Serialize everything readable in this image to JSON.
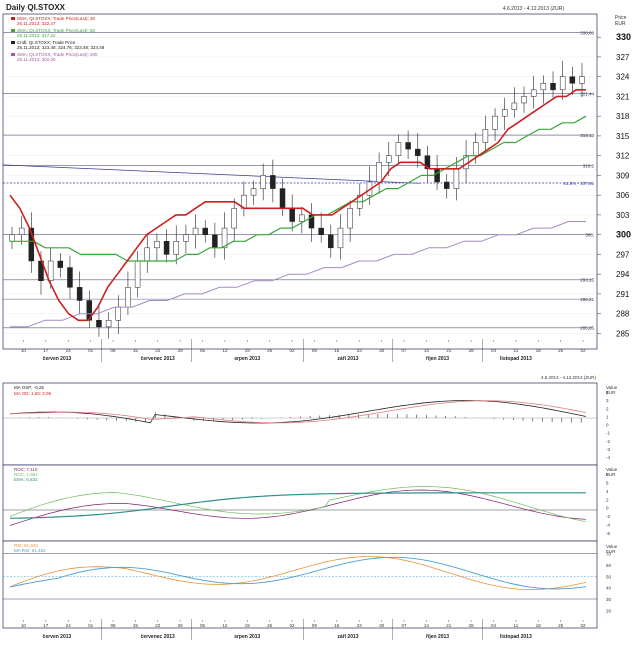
{
  "header": {
    "title": "Daily QI.STOXX",
    "range": "4.6.2013 - 4.12.2013 (ZUR)",
    "range2": "4.6.2013 - 4.12.2013 (ZUR)"
  },
  "colors": {
    "price": "#222222",
    "sma30": "#cc1f1f",
    "sma50": "#3aa63a",
    "sma200": "#a58cc0",
    "rsi": "#e8943a",
    "rsi_ma": "#4aa0d0",
    "roc": "#7a1f6e",
    "roc2": "#6dbf5a",
    "ema": "#2f8f8a",
    "grid": "#7a7a9a"
  },
  "legend": {
    "sma30": "SMA; QI.STOXX; Trade Price(Last); 30",
    "sma30_v": "25.11.2013; 322,47",
    "sma50": "SMA; QI.STOXX; Trade Price(Last); 50",
    "sma50_v": "25.11.2013; 317,22",
    "ohlc": "Cndl; QI.STOXX; Trade Price",
    "ohlc_v": "25.11.2013; 323,48; 324,76; 323,48; 324,48",
    "sma200": "SMA; QI.STOXX; Trade Price(Last); 200",
    "sma200_v": "25.11.2013; 302,00"
  },
  "price_axis": {
    "unit1": "Price",
    "unit2": "EUR",
    "ticks": [
      "330",
      "327",
      "324",
      "321",
      "318",
      "315",
      "312",
      "309",
      "306",
      "303",
      "300",
      "297",
      "294",
      "291",
      "288",
      "285"
    ]
  },
  "levels": [
    {
      "value": 330.68,
      "label": "330,68"
    },
    {
      "value": 321.44,
      "label": "321,44"
    },
    {
      "value": 315.13,
      "label": "315,13"
    },
    {
      "value": 310.5,
      "label": "310,5"
    },
    {
      "value": 307.85,
      "label": "61,8% · 307,85"
    },
    {
      "value": 300.0,
      "label": "300,"
    },
    {
      "value": 293.15,
      "label": "293,15"
    },
    {
      "value": 290.21,
      "label": "290,21"
    },
    {
      "value": 285.85,
      "label": "285,85"
    }
  ],
  "x_ticks": [
    "10",
    "17",
    "24",
    "01",
    "08",
    "15",
    "22",
    "29",
    "05",
    "12",
    "19",
    "26",
    "02",
    "09",
    "16",
    "23",
    "30",
    "07",
    "14",
    "21",
    "28",
    "04",
    "11",
    "18",
    "25",
    "02"
  ],
  "months": [
    {
      "at": 1.5,
      "label": "červen 2013"
    },
    {
      "at": 6.0,
      "label": "červenec 2013"
    },
    {
      "at": 10.0,
      "label": "srpen 2013"
    },
    {
      "at": 14.5,
      "label": "září 2013"
    },
    {
      "at": 18.5,
      "label": "říjen 2013"
    },
    {
      "at": 22.0,
      "label": "listopad 2013"
    }
  ],
  "macd_legend": {
    "l1": "MA OSP; -0,25",
    "l2": "MA OD; 1,60; 2,09"
  },
  "macd_axis": {
    "unit1": "Value",
    "unit2": "EUR",
    "ticks": [
      "4",
      "3",
      "2",
      "1",
      "0",
      "-1",
      "-2",
      "-3",
      "-4"
    ]
  },
  "roc_legend": {
    "l1": "ROC; 7,110",
    "l2": "ROC; 1,862",
    "l3": "EMA; 6,633"
  },
  "roc_axis": {
    "unit1": "Value",
    "unit2": "EUR",
    "ticks": [
      "8",
      "6",
      "4",
      "2",
      "0",
      "-2",
      "-4",
      "-6"
    ]
  },
  "rsi_legend": {
    "l1": "RSI; 61,929",
    "l2": "MA RSI; 61,452"
  },
  "rsi_axis": {
    "unit1": "Value",
    "unit2": "EUR",
    "ticks": [
      "70",
      "60",
      "50",
      "40",
      "30",
      "20"
    ]
  },
  "chart_data": {
    "type": "line",
    "title": "Daily QI.STOXX",
    "x_ticks_note": "weekly date ticks from June to early December 2013",
    "ylim": [
      284,
      332
    ],
    "series": [
      {
        "name": "Cndl; QI.STOXX; Trade Price",
        "values": [
          300,
          301,
          296,
          293,
          296,
          295,
          292,
          290,
          287,
          286,
          287,
          289,
          292,
          296,
          298,
          299,
          297,
          299,
          300,
          301,
          300,
          298,
          301,
          304,
          306,
          307,
          309,
          307,
          304,
          302,
          303,
          301,
          300,
          298,
          301,
          304,
          306,
          308,
          311,
          312,
          314,
          313,
          312,
          310,
          308,
          307,
          310,
          312,
          314,
          316,
          318,
          319,
          320,
          321,
          322,
          323,
          322,
          324,
          323,
          324
        ]
      },
      {
        "name": "SMA; QI.STOXX; Trade Price(Last); 30",
        "values": [
          306,
          304,
          301,
          297,
          293,
          290,
          288,
          287,
          287,
          289,
          292,
          294,
          296,
          298,
          300,
          301,
          302,
          303,
          303,
          304,
          305,
          305,
          305,
          305,
          304,
          304,
          304,
          304,
          304,
          304,
          304,
          303,
          303,
          303,
          304,
          305,
          306,
          307,
          308,
          310,
          311,
          311,
          311,
          310,
          310,
          310,
          310,
          311,
          312,
          313,
          314,
          316,
          317,
          318,
          319,
          320,
          321,
          321,
          322,
          322
        ]
      },
      {
        "name": "SMA; QI.STOXX; Trade Price(Last); 50",
        "values": [
          299,
          299,
          299,
          298,
          298,
          298,
          297,
          297,
          297,
          297,
          296,
          296,
          296,
          296,
          296,
          297,
          297,
          298,
          298,
          299,
          299,
          300,
          300,
          301,
          301,
          302,
          303,
          303,
          304,
          305,
          305,
          306,
          307,
          307,
          308,
          309,
          309,
          310,
          311,
          312,
          312,
          313,
          314,
          314,
          315,
          316,
          316,
          317,
          317,
          318
        ]
      },
      {
        "name": "SMA; QI.STOXX; Trade Price(Last); 200",
        "values": [
          286,
          286,
          287,
          287,
          288,
          288,
          289,
          289,
          290,
          290,
          291,
          291,
          292,
          292,
          293,
          293,
          294,
          294,
          295,
          295,
          296,
          296,
          297,
          297,
          298,
          298,
          299,
          299,
          300,
          300,
          301,
          301,
          302,
          302
        ]
      }
    ]
  }
}
